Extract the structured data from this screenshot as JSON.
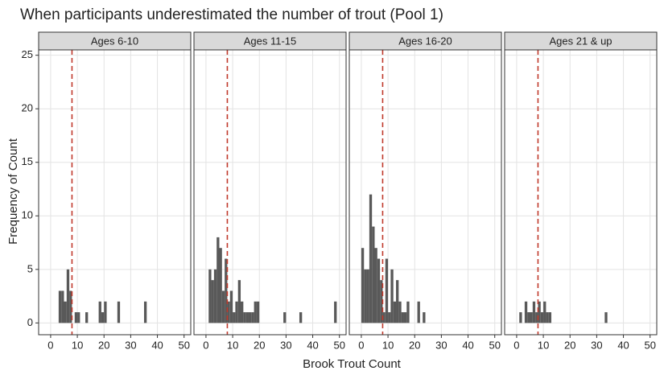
{
  "chart_data": {
    "type": "histogram",
    "title": "When participants underestimated the number of trout (Pool 1)",
    "x_label": "Brook Trout Count",
    "y_label": "Frequency of Count",
    "grid": true,
    "color": "#595959",
    "reference_color": "#c0392b",
    "xlim": [
      -4.5,
      52.5
    ],
    "xticks": [
      0,
      10,
      20,
      30,
      40,
      50
    ],
    "ylim": [
      -1.1,
      25.5
    ],
    "yticks": [
      0,
      5,
      10,
      15,
      20,
      25
    ],
    "bins": [
      0,
      1,
      2,
      3,
      4,
      5,
      6,
      7,
      8,
      9,
      10,
      11,
      12,
      13,
      14,
      15,
      16,
      17,
      18,
      19,
      20,
      21,
      22,
      23,
      24,
      25,
      26,
      27,
      28,
      29,
      30,
      31,
      32,
      33,
      34,
      35,
      36,
      37,
      38,
      39,
      40,
      41,
      42,
      43,
      44,
      45,
      46,
      47,
      48,
      49,
      50
    ],
    "panels": [
      {
        "title": "Ages 6-10",
        "reference_line": 8,
        "counts": [
          0,
          0,
          0,
          3,
          3,
          2,
          5,
          3,
          0,
          1,
          1,
          0,
          0,
          1,
          0,
          0,
          0,
          0,
          2,
          1,
          2,
          0,
          0,
          0,
          0,
          2,
          0,
          0,
          0,
          0,
          0,
          0,
          0,
          0,
          0,
          2,
          0,
          0,
          0,
          0,
          0,
          0,
          0,
          0,
          0,
          0,
          0,
          0,
          0,
          0
        ]
      },
      {
        "title": "Ages 11-15",
        "reference_line": 8,
        "counts": [
          0,
          5,
          4,
          5,
          8,
          7,
          3,
          6,
          2,
          3,
          1,
          2,
          4,
          2,
          1,
          1,
          1,
          1,
          2,
          2,
          0,
          0,
          0,
          0,
          0,
          0,
          0,
          0,
          0,
          1,
          0,
          0,
          0,
          0,
          0,
          1,
          0,
          0,
          0,
          0,
          0,
          0,
          0,
          0,
          0,
          0,
          0,
          0,
          2,
          0
        ]
      },
      {
        "title": "Ages 16-20",
        "reference_line": 8,
        "counts": [
          7,
          5,
          5,
          12,
          9,
          7,
          6,
          4,
          1,
          6,
          1,
          5,
          2,
          4,
          2,
          1,
          1,
          2,
          0,
          0,
          0,
          2,
          0,
          1,
          0,
          0,
          0,
          0,
          0,
          0,
          0,
          0,
          0,
          0,
          0,
          0,
          0,
          0,
          0,
          0,
          0,
          0,
          0,
          0,
          0,
          0,
          0,
          0,
          0,
          0
        ]
      },
      {
        "title": "Ages 21 & up",
        "reference_line": 8,
        "counts": [
          0,
          1,
          0,
          2,
          1,
          1,
          2,
          1,
          2,
          1,
          2,
          1,
          1,
          0,
          0,
          0,
          0,
          0,
          0,
          0,
          0,
          0,
          0,
          0,
          0,
          0,
          0,
          0,
          0,
          0,
          0,
          0,
          0,
          1,
          0,
          0,
          0,
          0,
          0,
          0,
          0,
          0,
          0,
          0,
          0,
          0,
          0,
          0,
          0,
          0
        ]
      }
    ]
  }
}
